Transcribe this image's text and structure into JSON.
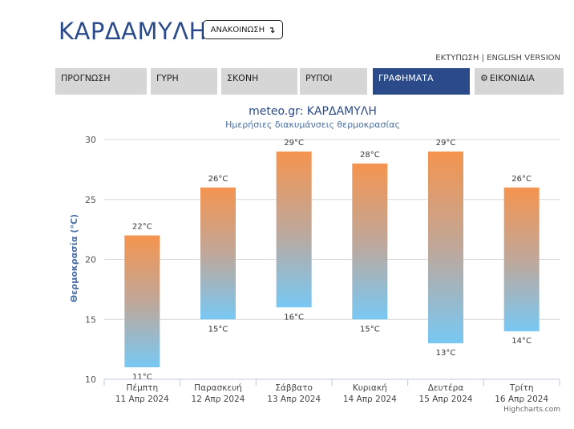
{
  "header": {
    "title": "ΚΑΡΔΑΜΥΛΗ",
    "announce_label": "ΑΝΑΚΟΙΝΩΣΗ",
    "announce_icon": "arrow-turn-icon",
    "print_link": "ΕΚΤΥΠΩΣΗ",
    "separator": "|",
    "english_link": "ENGLISH VERSION"
  },
  "tabs": [
    {
      "label": "ΠΡΟΓΝΩΣΗ",
      "active": false
    },
    {
      "label": "ΓΥΡΗ",
      "active": false
    },
    {
      "label": "ΣΚΟΝΗ",
      "active": false
    },
    {
      "label": "ΡΥΠΟΙ",
      "active": false
    },
    {
      "label": "ΓΡΑΦΗΜΑΤΑ",
      "active": true
    },
    {
      "label": "ΕΙΚΟΝΙΔΙΑ",
      "active": false,
      "icon": "gear-icon"
    }
  ],
  "colors": {
    "accent": "#2b4a8a",
    "tab_bg": "#d6d6d6",
    "bar_top": "#f5944f",
    "bar_bottom": "#78c8f4"
  },
  "chart_data": {
    "type": "bar",
    "title": "meteo.gr: ΚΑΡΔΑΜΥΛΗ",
    "subtitle": "Ημερήσιες διακυμάνσεις θερμοκρασίας",
    "ylabel": "Θερμοκρασία (°C)",
    "xlabel": "",
    "ylim": [
      10,
      30
    ],
    "yticks": [
      10,
      15,
      20,
      25,
      30
    ],
    "grid": true,
    "categories": [
      {
        "day": "Πέμπτη",
        "date": "11 Απρ 2024"
      },
      {
        "day": "Παρασκευή",
        "date": "12 Απρ 2024"
      },
      {
        "day": "Σάββατο",
        "date": "13 Απρ 2024"
      },
      {
        "day": "Κυριακή",
        "date": "14 Απρ 2024"
      },
      {
        "day": "Δευτέρα",
        "date": "15 Απρ 2024"
      },
      {
        "day": "Τρίτη",
        "date": "16 Απρ 2024"
      }
    ],
    "series": [
      {
        "values": [
          [
            11,
            22
          ],
          [
            15,
            26
          ],
          [
            16,
            29
          ],
          [
            15,
            28
          ],
          [
            13,
            29
          ],
          [
            14,
            26
          ]
        ]
      }
    ],
    "unit": "°C",
    "credits": "Highcharts.com"
  }
}
